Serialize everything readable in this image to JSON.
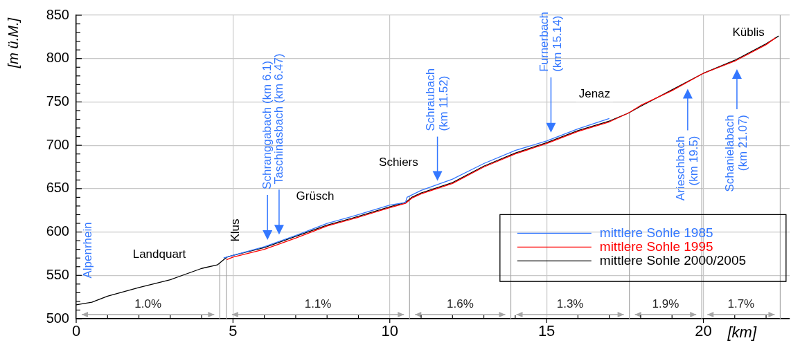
{
  "chart_data": {
    "type": "line",
    "xlabel": "[km]",
    "ylabel": "[m ü.M.]",
    "xlim": [
      0,
      22.75
    ],
    "ylim": [
      500,
      850
    ],
    "xticks": [
      0,
      {
        "value": 1,
        "label": null
      },
      {
        "value": 2,
        "label": null
      },
      {
        "value": 3,
        "label": null
      },
      {
        "value": 4,
        "label": null
      },
      5,
      {
        "value": 6,
        "label": null
      },
      {
        "value": 7,
        "label": null
      },
      {
        "value": 8,
        "label": null
      },
      {
        "value": 9,
        "label": null
      },
      10,
      {
        "value": 11,
        "label": null
      },
      {
        "value": 12,
        "label": null
      },
      {
        "value": 13,
        "label": null
      },
      {
        "value": 14,
        "label": null
      },
      15,
      {
        "value": 16,
        "label": null
      },
      {
        "value": 17,
        "label": null
      },
      {
        "value": 18,
        "label": null
      },
      {
        "value": 19,
        "label": null
      },
      20,
      {
        "value": 21,
        "label": null
      },
      {
        "value": 22,
        "label": null
      }
    ],
    "yticks": [
      500,
      {
        "value": 510,
        "label": null
      },
      {
        "value": 520,
        "label": null
      },
      {
        "value": 530,
        "label": null
      },
      {
        "value": 540,
        "label": null
      },
      550,
      {
        "value": 560,
        "label": null
      },
      {
        "value": 570,
        "label": null
      },
      {
        "value": 580,
        "label": null
      },
      {
        "value": 590,
        "label": null
      },
      600,
      {
        "value": 610,
        "label": null
      },
      {
        "value": 620,
        "label": null
      },
      {
        "value": 630,
        "label": null
      },
      {
        "value": 640,
        "label": null
      },
      650,
      {
        "value": 660,
        "label": null
      },
      {
        "value": 670,
        "label": null
      },
      {
        "value": 680,
        "label": null
      },
      {
        "value": 690,
        "label": null
      },
      700,
      {
        "value": 710,
        "label": null
      },
      {
        "value": 720,
        "label": null
      },
      {
        "value": 730,
        "label": null
      },
      {
        "value": 740,
        "label": null
      },
      750,
      {
        "value": 760,
        "label": null
      },
      {
        "value": 770,
        "label": null
      },
      {
        "value": 780,
        "label": null
      },
      {
        "value": 790,
        "label": null
      },
      800,
      {
        "value": 810,
        "label": null
      },
      {
        "value": 820,
        "label": null
      },
      {
        "value": 830,
        "label": null
      },
      {
        "value": 840,
        "label": null
      },
      850
    ],
    "grid": true,
    "legend": "bottom right",
    "series": [
      {
        "name": "mittlere Sohle 1985",
        "color": "#3377ff",
        "x": [
          4.7,
          5,
          6,
          7,
          8,
          9,
          10,
          10.5,
          10.55,
          11,
          12,
          13,
          14,
          15,
          16,
          17
        ],
        "values": [
          570,
          573,
          583,
          596,
          610,
          620,
          631,
          634,
          640,
          648,
          661,
          679,
          694,
          705,
          719,
          731
        ]
      },
      {
        "name": "mittlere Sohle 1995",
        "color": "#ff0000",
        "x": [
          4.8,
          5,
          6,
          7,
          8,
          9,
          10,
          10.5,
          10.7,
          11,
          12,
          13,
          14,
          15,
          16,
          17,
          17.6,
          18,
          19,
          20,
          21,
          22,
          22.3
        ],
        "values": [
          568,
          571,
          580,
          593,
          607,
          617,
          628,
          633,
          639,
          644,
          656,
          675,
          690,
          702,
          716,
          727,
          737,
          746,
          763,
          783,
          797,
          816,
          824
        ]
      },
      {
        "name": "mittlere Sohle 2000/2005",
        "color": "#000000",
        "x": [
          0,
          0.5,
          1,
          2,
          3,
          4,
          4.5,
          4.8,
          5,
          6,
          7,
          8,
          9,
          10,
          10.5,
          10.7,
          11,
          12,
          13,
          14,
          15,
          16,
          17,
          17.6,
          18,
          19,
          20,
          21,
          22,
          22.4
        ],
        "values": [
          516,
          519,
          526,
          536,
          545,
          558,
          562,
          571,
          573,
          582,
          595,
          608,
          618,
          629,
          634,
          640,
          645,
          657,
          676,
          691,
          703,
          717,
          728,
          737,
          745,
          764,
          783,
          798,
          817,
          826
        ]
      }
    ],
    "ref_lines": [
      {
        "axis": "x",
        "value": 4.58,
        "color": "#a6a6a6"
      },
      {
        "axis": "x",
        "value": 4.79,
        "color": "#a6a6a6"
      },
      {
        "axis": "x",
        "value": 10.63,
        "color": "#a6a6a6"
      },
      {
        "axis": "x",
        "value": 13.86,
        "color": "#a6a6a6"
      },
      {
        "axis": "x",
        "value": 17.64,
        "color": "#a6a6a6"
      },
      {
        "axis": "x",
        "value": 19.95,
        "color": "#a6a6a6"
      },
      {
        "axis": "x",
        "value": 22.45,
        "color": "#a6a6a6"
      }
    ],
    "annotations": [
      "Alpenrhein",
      "Landquart",
      "Klus",
      "Grüsch",
      "Schiers",
      "Jenaz",
      "Küblis",
      "Schranggabach (km 6.1)",
      "Taschinasbach (km 6.47)",
      "Schraubach\n(km 11.52)",
      "Furnerbach\n(km 15.14)",
      "Arieschbach\n(km 19.5)",
      "Schanielabach\n(km 21.07)",
      "1.0%",
      "1.1%",
      "1.6%",
      "1.3%",
      "1.9%",
      "1.7%"
    ]
  }
}
